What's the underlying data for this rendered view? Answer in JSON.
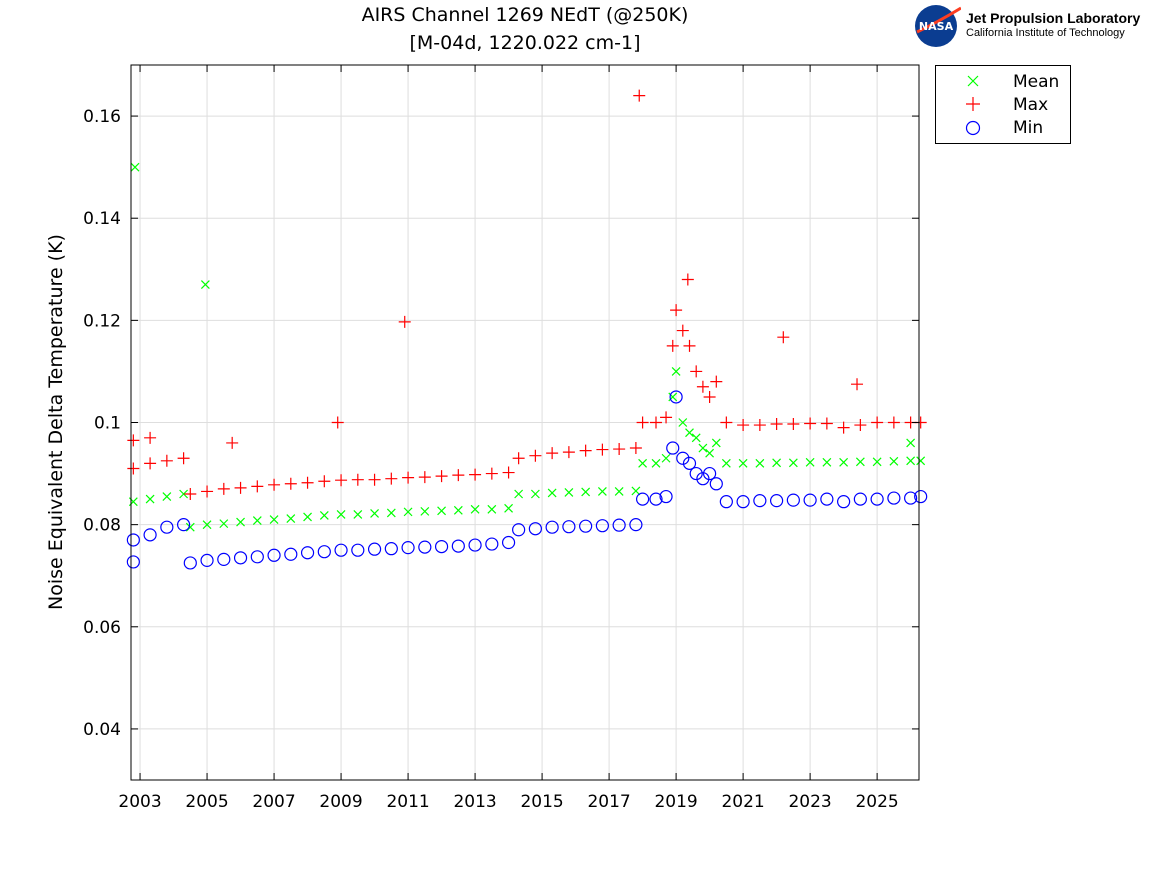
{
  "chart_data": {
    "type": "scatter",
    "title": "AIRS Channel 1269 NEdT (@250K)",
    "subtitle": "[M-04d, 1220.022 cm-1]",
    "ylabel": "Noise Equivalent Delta Temperature (K)",
    "xlabel": "",
    "xlim": [
      2002.73,
      2026.25
    ],
    "ylim": [
      0.03,
      0.17
    ],
    "xticks": [
      2003,
      2005,
      2007,
      2009,
      2011,
      2013,
      2015,
      2017,
      2019,
      2021,
      2023,
      2025
    ],
    "yticks": [
      0.04,
      0.06,
      0.08,
      0.1,
      0.12,
      0.14,
      0.16
    ],
    "ytick_labels": [
      "0.04",
      "0.06",
      "0.08",
      "0.1",
      "0.12",
      "0.14",
      "0.16"
    ],
    "grid": true,
    "legend_placement": "outside-top-right",
    "series": [
      {
        "name": "Mean",
        "marker": "x",
        "color": "#00ff00",
        "points": [
          [
            2002.8,
            0.0845
          ],
          [
            2003.3,
            0.085
          ],
          [
            2003.8,
            0.0855
          ],
          [
            2004.3,
            0.086
          ],
          [
            2004.5,
            0.0795
          ],
          [
            2005,
            0.08
          ],
          [
            2005.5,
            0.0802
          ],
          [
            2006,
            0.0805
          ],
          [
            2006.5,
            0.0808
          ],
          [
            2007,
            0.081
          ],
          [
            2007.5,
            0.0812
          ],
          [
            2008,
            0.0815
          ],
          [
            2008.5,
            0.0818
          ],
          [
            2009,
            0.082
          ],
          [
            2009.5,
            0.082
          ],
          [
            2010,
            0.0822
          ],
          [
            2010.5,
            0.0823
          ],
          [
            2011,
            0.0825
          ],
          [
            2011.5,
            0.0826
          ],
          [
            2012,
            0.0827
          ],
          [
            2012.5,
            0.0828
          ],
          [
            2013,
            0.083
          ],
          [
            2013.5,
            0.083
          ],
          [
            2014,
            0.0832
          ],
          [
            2014.3,
            0.086
          ],
          [
            2014.8,
            0.086
          ],
          [
            2015.3,
            0.0862
          ],
          [
            2015.8,
            0.0863
          ],
          [
            2016.3,
            0.0864
          ],
          [
            2016.8,
            0.0865
          ],
          [
            2017.3,
            0.0865
          ],
          [
            2017.8,
            0.0866
          ],
          [
            2018,
            0.092
          ],
          [
            2018.4,
            0.092
          ],
          [
            2018.7,
            0.093
          ],
          [
            2018.9,
            0.105
          ],
          [
            2019.0,
            0.11
          ],
          [
            2019.2,
            0.1
          ],
          [
            2019.4,
            0.098
          ],
          [
            2019.6,
            0.097
          ],
          [
            2019.8,
            0.095
          ],
          [
            2020.0,
            0.094
          ],
          [
            2020.2,
            0.096
          ],
          [
            2020.5,
            0.092
          ],
          [
            2021,
            0.092
          ],
          [
            2021.5,
            0.092
          ],
          [
            2022,
            0.0921
          ],
          [
            2022.5,
            0.0921
          ],
          [
            2023,
            0.0922
          ],
          [
            2023.5,
            0.0922
          ],
          [
            2024,
            0.0922
          ],
          [
            2024.5,
            0.0923
          ],
          [
            2025,
            0.0923
          ],
          [
            2025.5,
            0.0924
          ],
          [
            2026,
            0.0925
          ],
          [
            2026.3,
            0.0925
          ],
          [
            2002.85,
            0.15
          ],
          [
            2004.95,
            0.127
          ],
          [
            2026.0,
            0.096
          ]
        ]
      },
      {
        "name": "Max",
        "marker": "+",
        "color": "#ff0000",
        "points": [
          [
            2002.8,
            0.091
          ],
          [
            2003.3,
            0.092
          ],
          [
            2003.8,
            0.0925
          ],
          [
            2004.3,
            0.093
          ],
          [
            2004.5,
            0.086
          ],
          [
            2005,
            0.0865
          ],
          [
            2005.5,
            0.087
          ],
          [
            2006,
            0.0872
          ],
          [
            2006.5,
            0.0875
          ],
          [
            2007,
            0.0878
          ],
          [
            2007.5,
            0.088
          ],
          [
            2008,
            0.0882
          ],
          [
            2008.5,
            0.0885
          ],
          [
            2009,
            0.0887
          ],
          [
            2009.5,
            0.0888
          ],
          [
            2010,
            0.0888
          ],
          [
            2010.5,
            0.089
          ],
          [
            2011,
            0.0892
          ],
          [
            2011.5,
            0.0893
          ],
          [
            2012,
            0.0895
          ],
          [
            2012.5,
            0.0897
          ],
          [
            2013,
            0.0898
          ],
          [
            2013.5,
            0.09
          ],
          [
            2014,
            0.0902
          ],
          [
            2014.3,
            0.093
          ],
          [
            2014.8,
            0.0935
          ],
          [
            2015.3,
            0.094
          ],
          [
            2015.8,
            0.0942
          ],
          [
            2016.3,
            0.0945
          ],
          [
            2016.8,
            0.0947
          ],
          [
            2017.3,
            0.0948
          ],
          [
            2017.8,
            0.095
          ],
          [
            2018,
            0.1
          ],
          [
            2018.4,
            0.1
          ],
          [
            2018.7,
            0.101
          ],
          [
            2018.9,
            0.115
          ],
          [
            2019.0,
            0.122
          ],
          [
            2019.2,
            0.118
          ],
          [
            2019.4,
            0.115
          ],
          [
            2019.6,
            0.11
          ],
          [
            2019.8,
            0.107
          ],
          [
            2020.0,
            0.105
          ],
          [
            2020.2,
            0.108
          ],
          [
            2020.5,
            0.1
          ],
          [
            2021,
            0.0995
          ],
          [
            2021.5,
            0.0995
          ],
          [
            2022,
            0.0997
          ],
          [
            2022.5,
            0.0997
          ],
          [
            2023,
            0.0998
          ],
          [
            2023.5,
            0.0998
          ],
          [
            2024,
            0.099
          ],
          [
            2024.5,
            0.0995
          ],
          [
            2025,
            0.1
          ],
          [
            2025.5,
            0.1
          ],
          [
            2026,
            0.1
          ],
          [
            2026.3,
            0.1
          ],
          [
            2002.8,
            0.0965
          ],
          [
            2003.3,
            0.097
          ],
          [
            2005.75,
            0.096
          ],
          [
            2008.9,
            0.1
          ],
          [
            2010.9,
            0.1197
          ],
          [
            2017.9,
            0.164
          ],
          [
            2019.35,
            0.128
          ],
          [
            2022.2,
            0.1167
          ],
          [
            2024.4,
            0.1075
          ]
        ]
      },
      {
        "name": "Min",
        "marker": "o",
        "color": "#0000ff",
        "points": [
          [
            2002.8,
            0.077
          ],
          [
            2003.3,
            0.078
          ],
          [
            2003.8,
            0.0795
          ],
          [
            2004.3,
            0.08
          ],
          [
            2004.5,
            0.0725
          ],
          [
            2005,
            0.073
          ],
          [
            2005.5,
            0.0732
          ],
          [
            2006,
            0.0735
          ],
          [
            2006.5,
            0.0737
          ],
          [
            2007,
            0.074
          ],
          [
            2007.5,
            0.0742
          ],
          [
            2008,
            0.0745
          ],
          [
            2008.5,
            0.0747
          ],
          [
            2009,
            0.075
          ],
          [
            2009.5,
            0.075
          ],
          [
            2010,
            0.0752
          ],
          [
            2010.5,
            0.0753
          ],
          [
            2011,
            0.0755
          ],
          [
            2011.5,
            0.0756
          ],
          [
            2012,
            0.0757
          ],
          [
            2012.5,
            0.0758
          ],
          [
            2013,
            0.076
          ],
          [
            2013.5,
            0.0762
          ],
          [
            2014,
            0.0765
          ],
          [
            2014.3,
            0.079
          ],
          [
            2014.8,
            0.0792
          ],
          [
            2015.3,
            0.0795
          ],
          [
            2015.8,
            0.0796
          ],
          [
            2016.3,
            0.0797
          ],
          [
            2016.8,
            0.0798
          ],
          [
            2017.3,
            0.0799
          ],
          [
            2017.8,
            0.08
          ],
          [
            2018,
            0.085
          ],
          [
            2018.4,
            0.085
          ],
          [
            2018.7,
            0.0855
          ],
          [
            2018.9,
            0.095
          ],
          [
            2019.0,
            0.105
          ],
          [
            2019.2,
            0.093
          ],
          [
            2019.4,
            0.092
          ],
          [
            2019.6,
            0.09
          ],
          [
            2019.8,
            0.089
          ],
          [
            2020.0,
            0.09
          ],
          [
            2020.2,
            0.088
          ],
          [
            2020.5,
            0.0845
          ],
          [
            2021,
            0.0845
          ],
          [
            2021.5,
            0.0847
          ],
          [
            2022,
            0.0847
          ],
          [
            2022.5,
            0.0848
          ],
          [
            2023,
            0.0848
          ],
          [
            2023.5,
            0.085
          ],
          [
            2024,
            0.0845
          ],
          [
            2024.5,
            0.085
          ],
          [
            2025,
            0.085
          ],
          [
            2025.5,
            0.0852
          ],
          [
            2026,
            0.0852
          ],
          [
            2026.3,
            0.0855
          ],
          [
            2002.8,
            0.0727
          ]
        ]
      }
    ]
  },
  "logo": {
    "org": "Jet Propulsion Laboratory",
    "sub": "California Institute of Technology",
    "badge": "NASA"
  }
}
